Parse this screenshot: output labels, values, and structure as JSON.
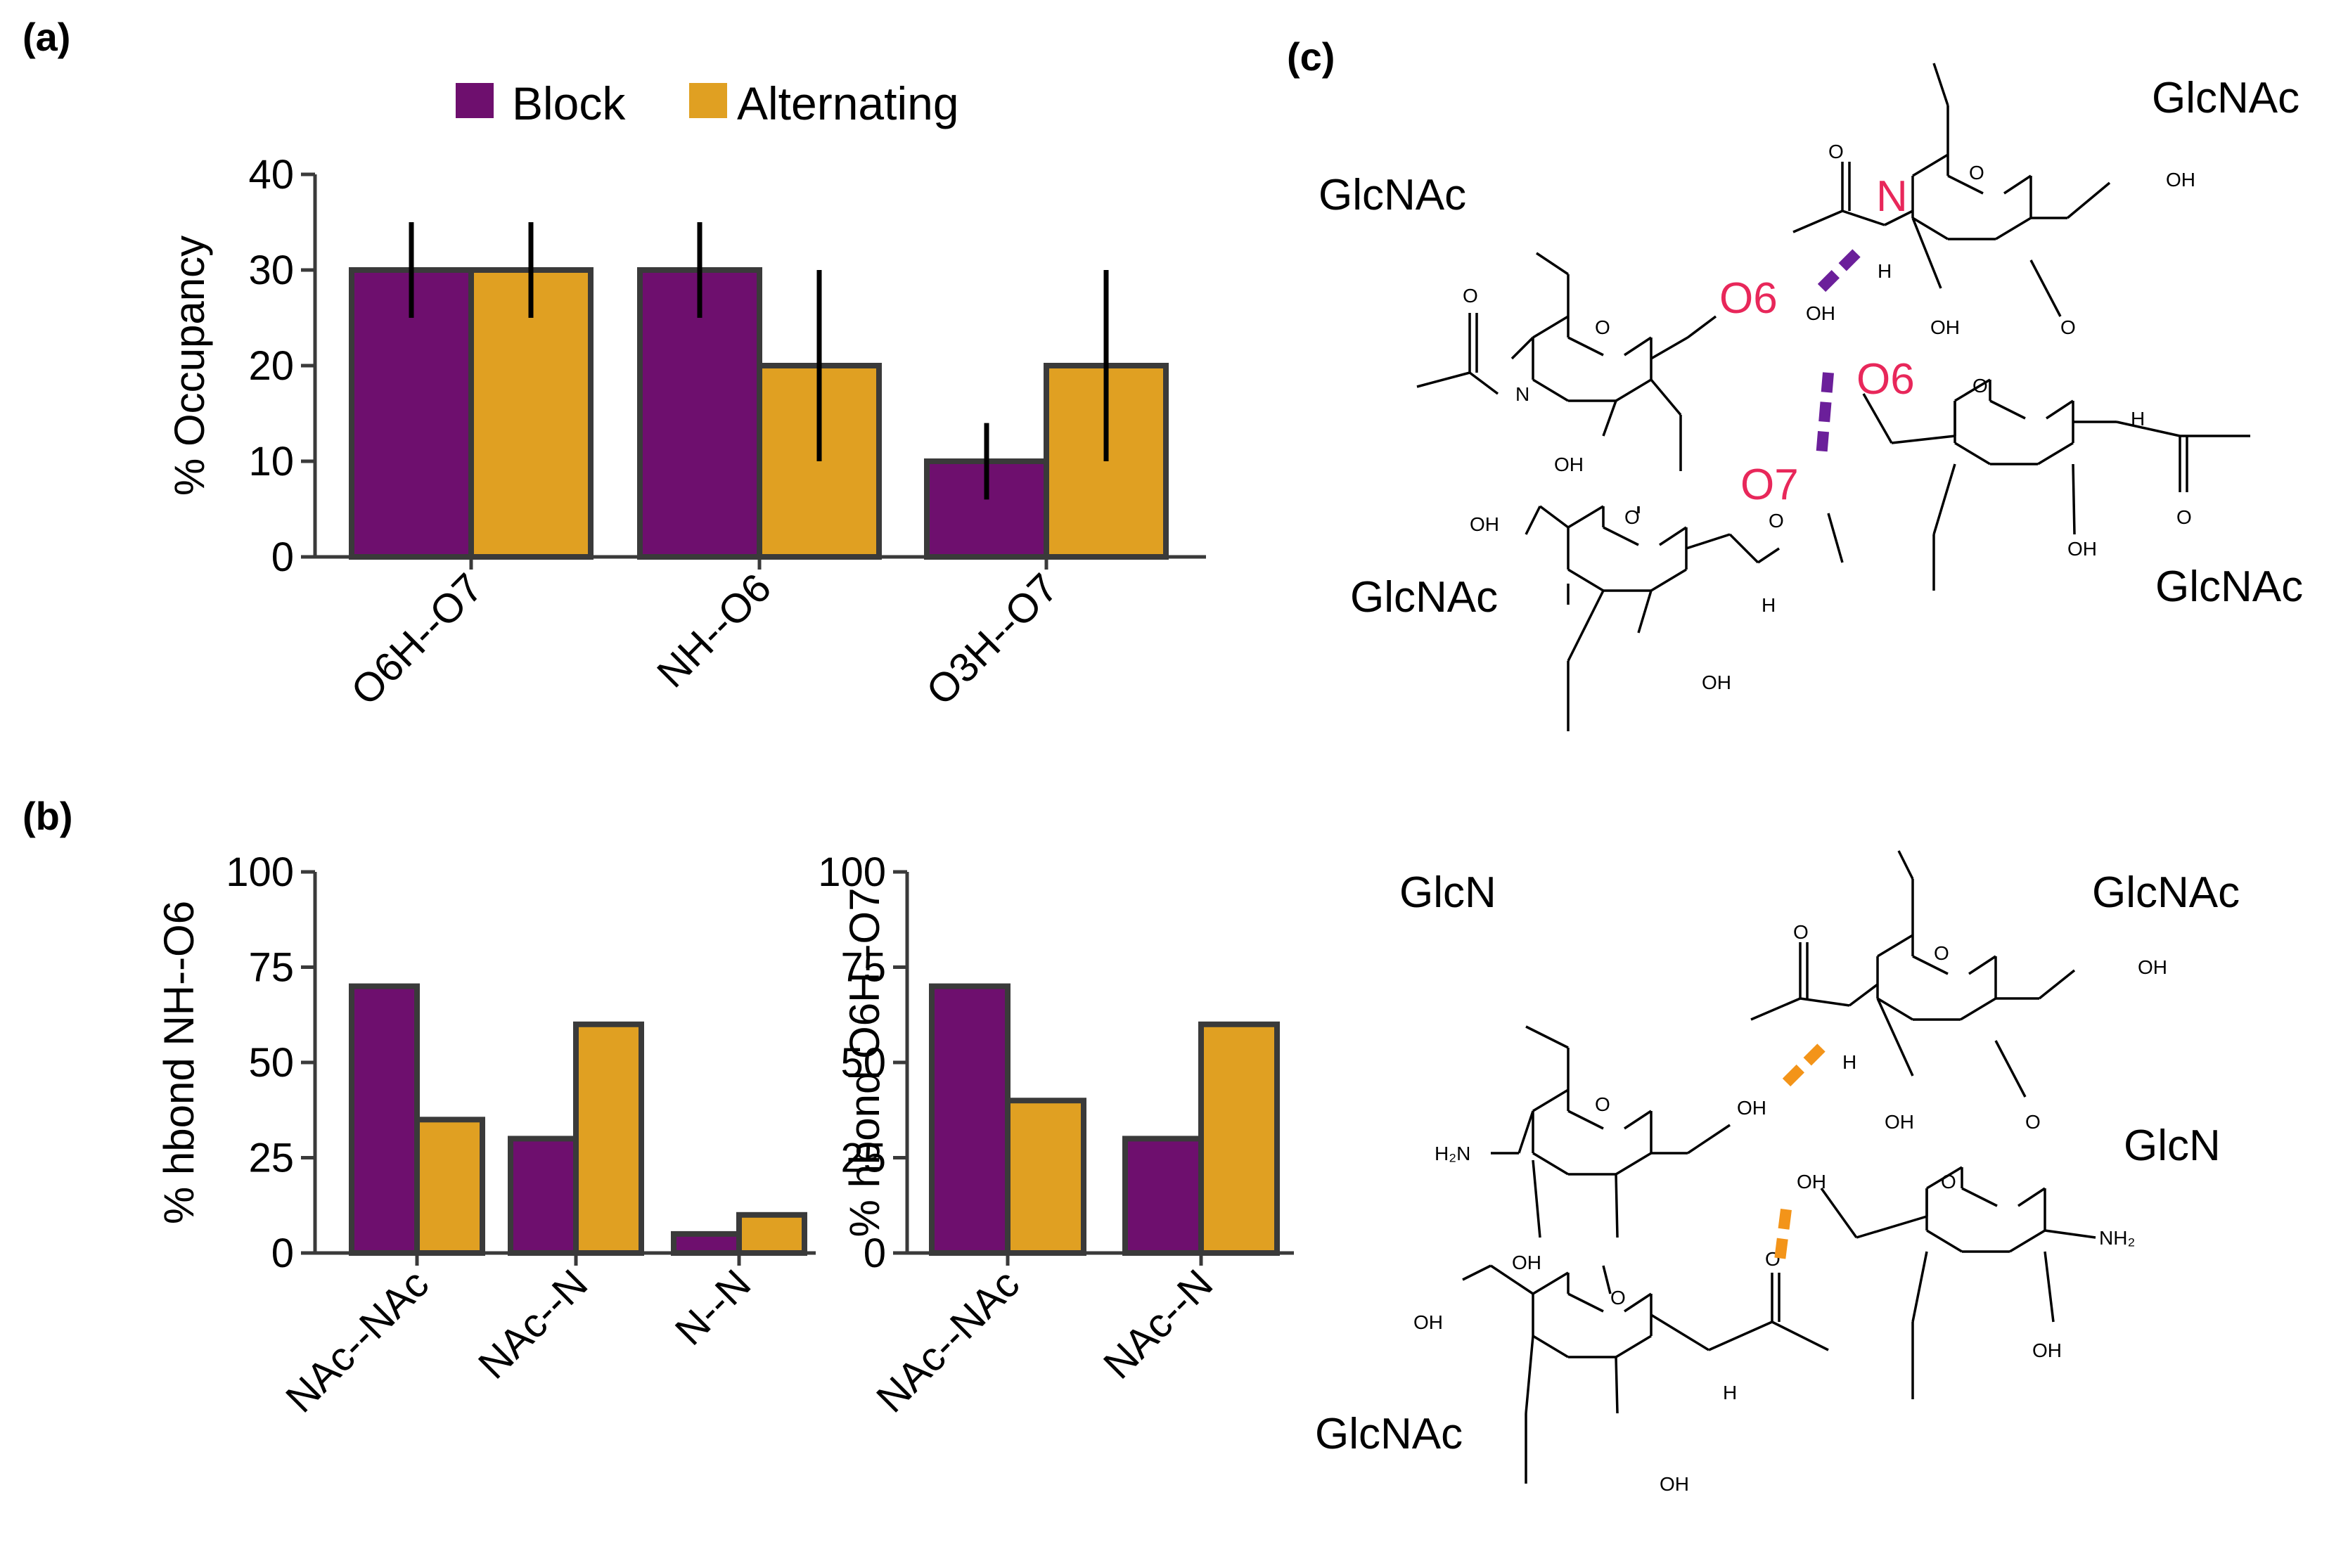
{
  "panel_labels": {
    "a": "(a)",
    "b": "(b)",
    "c": "(c)"
  },
  "legend": [
    {
      "label": "Block",
      "color": "#6e0f6e"
    },
    {
      "label": "Alternating",
      "color": "#e0a022"
    }
  ],
  "chart_data": [
    {
      "id": "a",
      "type": "bar",
      "ylabel": "% Occupancy",
      "ylim": [
        0,
        40
      ],
      "yticks": [
        "0",
        "10",
        "20",
        "30",
        "40"
      ],
      "categories": [
        "O6H--O7",
        "NH--O6",
        "O3H--O7"
      ],
      "series": [
        {
          "name": "Block",
          "values": [
            30,
            30,
            10
          ],
          "err_low": [
            25,
            25,
            6
          ],
          "err_high": [
            35,
            35,
            14
          ]
        },
        {
          "name": "Alternating",
          "values": [
            30,
            20,
            20
          ],
          "err_low": [
            25,
            10,
            10
          ],
          "err_high": [
            35,
            30,
            30
          ]
        }
      ]
    },
    {
      "id": "b1",
      "type": "bar",
      "ylabel": "% hbond NH--O6",
      "ylim": [
        0,
        100
      ],
      "yticks": [
        "0",
        "25",
        "50",
        "75",
        "100"
      ],
      "categories": [
        "NAc--NAc",
        "NAc--N",
        "N--N"
      ],
      "series": [
        {
          "name": "Block",
          "values": [
            70,
            30,
            5
          ]
        },
        {
          "name": "Alternating",
          "values": [
            35,
            60,
            10
          ]
        }
      ]
    },
    {
      "id": "b2",
      "type": "bar",
      "ylabel": "% hbond O6H--O7",
      "ylim": [
        0,
        100
      ],
      "yticks": [
        "0",
        "25",
        "50",
        "75",
        "100"
      ],
      "categories": [
        "NAc--NAc",
        "NAc--N"
      ],
      "series": [
        {
          "name": "Block",
          "values": [
            70,
            30
          ]
        },
        {
          "name": "Alternating",
          "values": [
            40,
            60
          ]
        }
      ]
    }
  ],
  "diagram": {
    "top": {
      "residues": [
        "GlcNAc",
        "GlcNAc",
        "GlcNAc",
        "GlcNAc"
      ],
      "hbond_labels": [
        "N",
        "O6",
        "O6",
        "O7"
      ]
    },
    "bottom": {
      "residues": [
        "GlcN",
        "GlcNAc",
        "GlcN",
        "GlcNAc"
      ]
    },
    "atoms": {
      "o": "O",
      "oh": "OH",
      "nh": "H",
      "n": "N",
      "h2n": "H₂N",
      "nh2": "NH₂"
    },
    "colors": {
      "purple": "#6b1f9a",
      "orange": "#f39419",
      "red": "#e8275a"
    }
  }
}
